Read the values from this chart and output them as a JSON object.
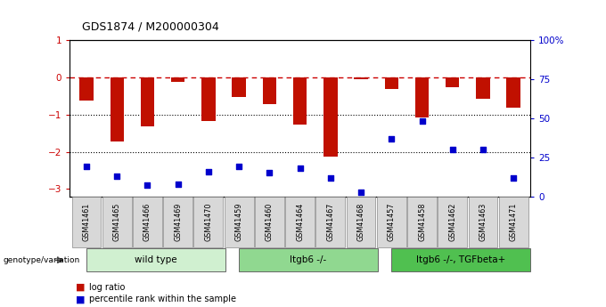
{
  "title": "GDS1874 / M200000304",
  "samples": [
    "GSM41461",
    "GSM41465",
    "GSM41466",
    "GSM41469",
    "GSM41470",
    "GSM41459",
    "GSM41460",
    "GSM41464",
    "GSM41467",
    "GSM41468",
    "GSM41457",
    "GSM41458",
    "GSM41462",
    "GSM41463",
    "GSM41471"
  ],
  "log_ratio": [
    -0.62,
    -1.72,
    -1.32,
    -0.12,
    -1.18,
    -0.52,
    -0.72,
    -1.28,
    -2.12,
    -0.06,
    -0.32,
    -1.08,
    -0.28,
    -0.58,
    -0.82
  ],
  "pct_rank": [
    19,
    13,
    7,
    8,
    16,
    19,
    15,
    18,
    12,
    3,
    37,
    48,
    30,
    30,
    12
  ],
  "groups": [
    {
      "label": "wild type",
      "start": 0,
      "end": 5,
      "color": "#d0f0d0"
    },
    {
      "label": "Itgb6 -/-",
      "start": 5,
      "end": 10,
      "color": "#90d890"
    },
    {
      "label": "Itgb6 -/-, TGFbeta+",
      "start": 10,
      "end": 15,
      "color": "#50c050"
    }
  ],
  "bar_color": "#c01000",
  "dot_color": "#0000cc",
  "dashed_line_color": "#cc0000",
  "background_color": "#ffffff",
  "ylim_left": [
    -3.2,
    1.0
  ],
  "ylim_right": [
    0,
    100
  ],
  "left_ticks": [
    -3,
    -2,
    -1,
    0,
    1
  ],
  "right_ticks": [
    0,
    25,
    50,
    75,
    100
  ],
  "right_tick_labels": [
    "0",
    "25",
    "50",
    "75",
    "100%"
  ]
}
